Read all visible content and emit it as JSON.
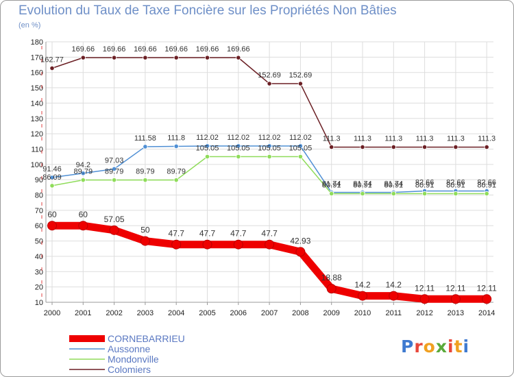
{
  "title": "Evolution du Taux de Taxe Foncière sur les Propriétés Non Bâties",
  "unit": "(en %)",
  "logo": {
    "letters": [
      "P",
      "r",
      "o",
      "x",
      "i",
      "t",
      "i"
    ],
    "colors": [
      "#3f7ad0",
      "#e8473a",
      "#f0a020",
      "#5aaa3a",
      "#e8473a",
      "#f0a020",
      "#3f7ad0"
    ]
  },
  "chart_data": {
    "type": "line",
    "x": [
      "2000",
      "2001",
      "2002",
      "2003",
      "2004",
      "2005",
      "2006",
      "2007",
      "2008",
      "2009",
      "2010",
      "2011",
      "2012",
      "2013",
      "2014"
    ],
    "ylim": [
      10,
      180
    ],
    "yticks": [
      10,
      20,
      30,
      40,
      50,
      60,
      70,
      80,
      90,
      100,
      110,
      120,
      130,
      140,
      150,
      160,
      170,
      180
    ],
    "grid": true,
    "legend_position": "bottom-left",
    "series": [
      {
        "name": "Colomiers",
        "color": "#6b1f24",
        "values": [
          162.77,
          169.66,
          169.66,
          169.66,
          169.66,
          169.66,
          169.66,
          152.69,
          152.69,
          111.3,
          111.3,
          111.3,
          111.3,
          111.3,
          111.3
        ],
        "labels": [
          "162.77",
          "169.66",
          "169.66",
          "169.66",
          "169.66",
          "169.66",
          "169.66",
          "152.69",
          "152.69",
          "111.3",
          "111.3",
          "111.3",
          "111.3",
          "111.3",
          "111.3"
        ]
      },
      {
        "name": "Aussonne",
        "color": "#4f8fd4",
        "values": [
          91.46,
          94.2,
          97.03,
          111.58,
          111.8,
          112.02,
          112.02,
          112.02,
          112.02,
          81.74,
          81.74,
          81.74,
          82.66,
          82.66,
          82.66
        ],
        "labels": [
          "91.46",
          "94.2",
          "97.03",
          "111.58",
          "111.8",
          "112.02",
          "112.02",
          "112.02",
          "112.02",
          "81.74",
          "81.74",
          "81.74",
          "82.66",
          "82.66",
          "82.66"
        ]
      },
      {
        "name": "Mondonville",
        "color": "#8fdc5a",
        "values": [
          86.09,
          89.79,
          89.79,
          89.79,
          89.79,
          105.05,
          105.05,
          105.05,
          105.05,
          80.91,
          80.91,
          80.91,
          80.91,
          80.91,
          80.91
        ],
        "labels": [
          "86.09",
          "89.79",
          "89.79",
          "89.79",
          "89.79",
          "105.05",
          "105.05",
          "105.05",
          "105.05",
          "80.91",
          "80.91",
          "80.91",
          "80.91",
          "80.91",
          "80.91"
        ]
      },
      {
        "name": "CORNEBARRIEU",
        "color": "#ee0000",
        "values": [
          60,
          60,
          57.05,
          50,
          47.7,
          47.7,
          47.7,
          47.7,
          42.93,
          18.88,
          14.2,
          14.2,
          12.11,
          12.11,
          12.11
        ],
        "labels": [
          "60",
          "60",
          "57.05",
          "50",
          "47.7",
          "47.7",
          "47.7",
          "47.7",
          "42.93",
          "18.88",
          "14.2",
          "14.2",
          "12.11",
          "12.11",
          "12.11"
        ]
      }
    ],
    "legend": [
      "CORNEBARRIEU",
      "Aussonne",
      "Mondonville",
      "Colomiers"
    ]
  }
}
